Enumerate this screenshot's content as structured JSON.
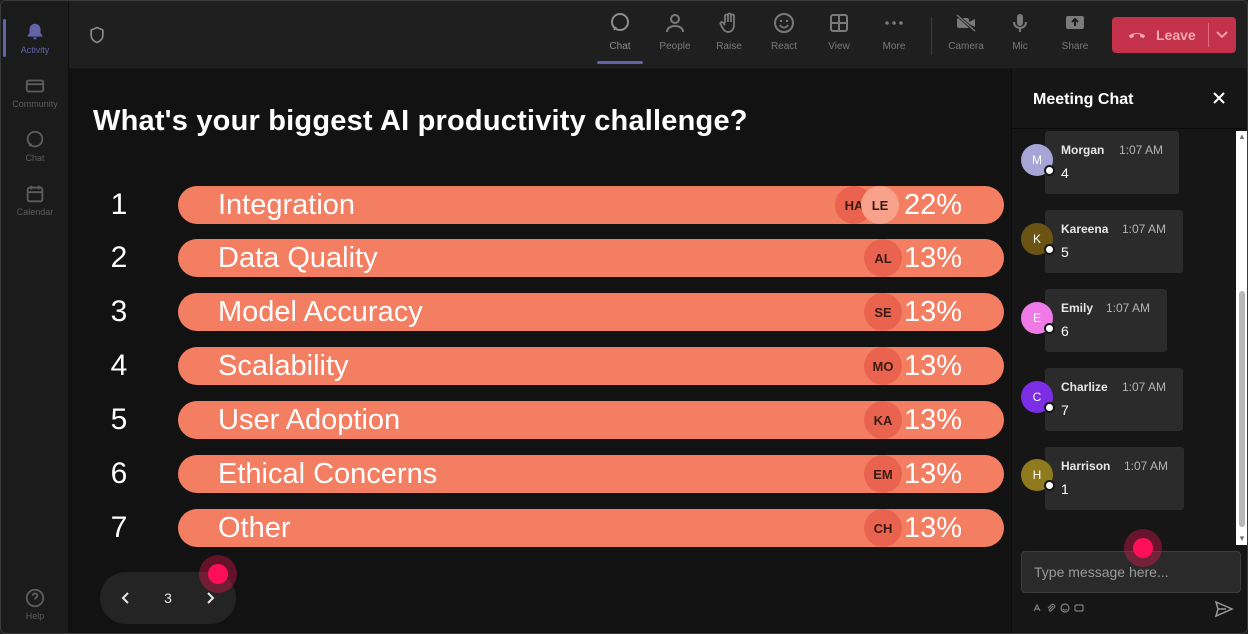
{
  "rail": {
    "items": [
      {
        "label": "Activity",
        "icon": "bell-icon"
      },
      {
        "label": "Community",
        "icon": "community-icon"
      },
      {
        "label": "Chat",
        "icon": "chat-icon"
      },
      {
        "label": "Calendar",
        "icon": "calendar-icon"
      },
      {
        "label": "Help",
        "icon": "help-icon"
      }
    ]
  },
  "toolbar": {
    "items": [
      {
        "label": "Chat",
        "icon": "chat-icon"
      },
      {
        "label": "People",
        "icon": "people-icon"
      },
      {
        "label": "Raise",
        "icon": "hand-icon"
      },
      {
        "label": "React",
        "icon": "smiley-icon"
      },
      {
        "label": "View",
        "icon": "grid-icon"
      },
      {
        "label": "More",
        "icon": "more-icon"
      },
      {
        "label": "Camera",
        "icon": "camera-off-icon"
      },
      {
        "label": "Mic",
        "icon": "mic-icon"
      },
      {
        "label": "Share",
        "icon": "share-icon"
      }
    ],
    "leave_label": "Leave"
  },
  "poll": {
    "title": "What's your biggest AI productivity challenge?",
    "options": [
      {
        "num": "1",
        "label": "Integration",
        "pct": "22%",
        "avatars": [
          "HA",
          "LE"
        ]
      },
      {
        "num": "2",
        "label": "Data Quality",
        "pct": "13%",
        "avatars": [
          "AL"
        ]
      },
      {
        "num": "3",
        "label": "Model Accuracy",
        "pct": "13%",
        "avatars": [
          "SE"
        ]
      },
      {
        "num": "4",
        "label": "Scalability",
        "pct": "13%",
        "avatars": [
          "MO"
        ]
      },
      {
        "num": "5",
        "label": "User Adoption",
        "pct": "13%",
        "avatars": [
          "KA"
        ]
      },
      {
        "num": "6",
        "label": "Ethical Concerns",
        "pct": "13%",
        "avatars": [
          "EM"
        ]
      },
      {
        "num": "7",
        "label": "Other",
        "pct": "13%",
        "avatars": [
          "CH"
        ]
      }
    ],
    "page": "3"
  },
  "chat": {
    "title": "Meeting Chat",
    "messages": [
      {
        "initial": "M",
        "name": "Morgan",
        "time": "1:07 AM",
        "text": "4",
        "color": "#a7a4d6"
      },
      {
        "initial": "K",
        "name": "Kareena",
        "time": "1:07 AM",
        "text": "5",
        "color": "#6b5413"
      },
      {
        "initial": "E",
        "name": "Emily",
        "time": "1:07 AM",
        "text": "6",
        "color": "#f07be8"
      },
      {
        "initial": "C",
        "name": "Charlize",
        "time": "1:07 AM",
        "text": "7",
        "color": "#7c2ee6"
      },
      {
        "initial": "H",
        "name": "Harrison",
        "time": "1:07 AM",
        "text": "1",
        "color": "#8f7a1e"
      }
    ],
    "compose_placeholder": "Type message here..."
  },
  "colors": {
    "bar": "#f47e62",
    "avatar_chip": "#e9634f",
    "leave": "#c4314b",
    "pointer": "#ff0f5a"
  }
}
